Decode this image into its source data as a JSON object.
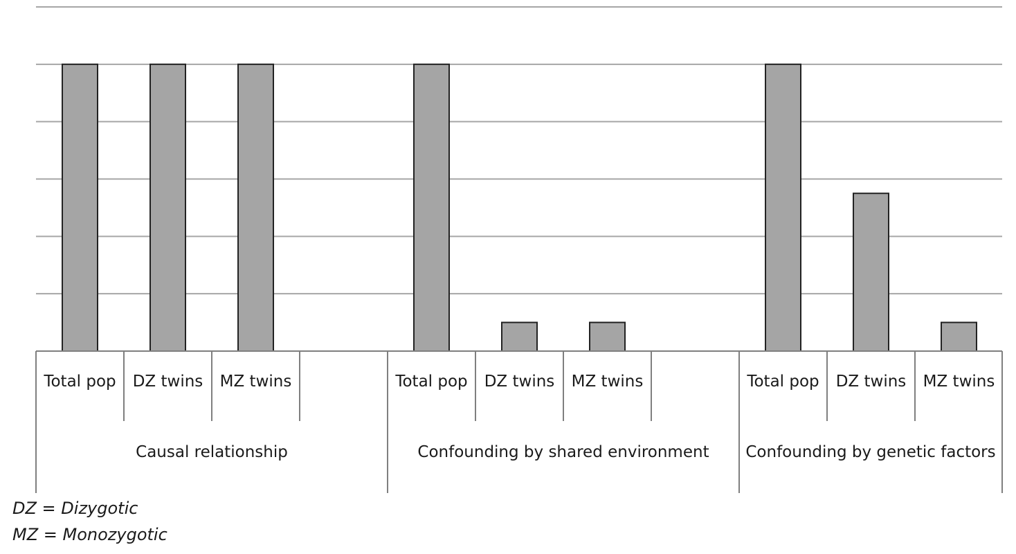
{
  "chart_data": {
    "type": "bar",
    "title": "",
    "xlabel": "",
    "ylabel": "",
    "ylim": [
      0,
      6
    ],
    "grid": true,
    "groups": [
      {
        "label": "Causal relationship",
        "categories": [
          "Total pop",
          "DZ twins",
          "MZ twins",
          ""
        ],
        "values": [
          5,
          5,
          5,
          null
        ]
      },
      {
        "label": "Confounding by shared environment",
        "categories": [
          "Total pop",
          "DZ twins",
          "MZ twins",
          ""
        ],
        "values": [
          5,
          0.5,
          0.5,
          null
        ]
      },
      {
        "label": "Confounding by genetic factors",
        "categories": [
          "Total pop",
          "DZ twins",
          "MZ twins"
        ],
        "values": [
          5,
          2.75,
          0.5
        ]
      }
    ]
  },
  "footnotes": [
    "DZ = Dizygotic",
    "MZ = Monozygotic"
  ]
}
